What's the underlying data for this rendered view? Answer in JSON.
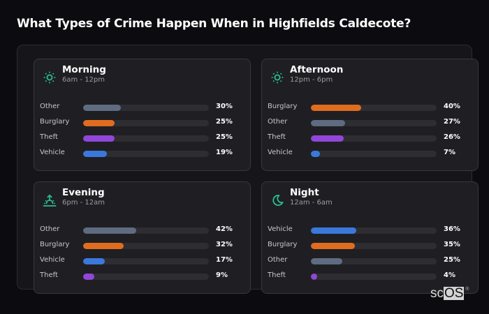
{
  "title": "What Types of Crime Happen When in Highfields Caldecote?",
  "colors": {
    "background": "#0c0c10",
    "accent_icon": "#2bbf8f",
    "Other": "#5f6b80",
    "Burglary": "#e06c1f",
    "Theft": "#9146d9",
    "Vehicle": "#3b78dc",
    "track": "#2d2d32"
  },
  "logo": {
    "sc": "sc",
    "os": "OS",
    "reg": "®"
  },
  "periods": [
    {
      "name": "Morning",
      "range": "6am - 12pm",
      "icon": "sun-icon",
      "rows": [
        {
          "label": "Other",
          "value": 30,
          "pct": "30%"
        },
        {
          "label": "Burglary",
          "value": 25,
          "pct": "25%"
        },
        {
          "label": "Theft",
          "value": 25,
          "pct": "25%"
        },
        {
          "label": "Vehicle",
          "value": 19,
          "pct": "19%"
        }
      ]
    },
    {
      "name": "Afternoon",
      "range": "12pm - 6pm",
      "icon": "sun-icon",
      "rows": [
        {
          "label": "Burglary",
          "value": 40,
          "pct": "40%"
        },
        {
          "label": "Other",
          "value": 27,
          "pct": "27%"
        },
        {
          "label": "Theft",
          "value": 26,
          "pct": "26%"
        },
        {
          "label": "Vehicle",
          "value": 7,
          "pct": "7%"
        }
      ]
    },
    {
      "name": "Evening",
      "range": "6pm - 12am",
      "icon": "sunset-icon",
      "rows": [
        {
          "label": "Other",
          "value": 42,
          "pct": "42%"
        },
        {
          "label": "Burglary",
          "value": 32,
          "pct": "32%"
        },
        {
          "label": "Vehicle",
          "value": 17,
          "pct": "17%"
        },
        {
          "label": "Theft",
          "value": 9,
          "pct": "9%"
        }
      ]
    },
    {
      "name": "Night",
      "range": "12am - 6am",
      "icon": "moon-icon",
      "rows": [
        {
          "label": "Vehicle",
          "value": 36,
          "pct": "36%"
        },
        {
          "label": "Burglary",
          "value": 35,
          "pct": "35%"
        },
        {
          "label": "Other",
          "value": 25,
          "pct": "25%"
        },
        {
          "label": "Theft",
          "value": 4,
          "pct": "4%"
        }
      ]
    }
  ],
  "chart_data": {
    "type": "bar",
    "title": "What Types of Crime Happen When in Highfields Caldecote?",
    "orientation": "horizontal",
    "unit": "%",
    "xlim": [
      0,
      100
    ],
    "grid": false,
    "panels": [
      {
        "title": "Morning",
        "subtitle": "6am - 12pm",
        "categories": [
          "Other",
          "Burglary",
          "Theft",
          "Vehicle"
        ],
        "values": [
          30,
          25,
          25,
          19
        ]
      },
      {
        "title": "Afternoon",
        "subtitle": "12pm - 6pm",
        "categories": [
          "Burglary",
          "Other",
          "Theft",
          "Vehicle"
        ],
        "values": [
          40,
          27,
          26,
          7
        ]
      },
      {
        "title": "Evening",
        "subtitle": "6pm - 12am",
        "categories": [
          "Other",
          "Burglary",
          "Vehicle",
          "Theft"
        ],
        "values": [
          42,
          32,
          17,
          9
        ]
      },
      {
        "title": "Night",
        "subtitle": "12am - 6am",
        "categories": [
          "Vehicle",
          "Burglary",
          "Other",
          "Theft"
        ],
        "values": [
          36,
          35,
          25,
          4
        ]
      }
    ],
    "series_colors": {
      "Other": "#5f6b80",
      "Burglary": "#e06c1f",
      "Theft": "#9146d9",
      "Vehicle": "#3b78dc"
    }
  }
}
